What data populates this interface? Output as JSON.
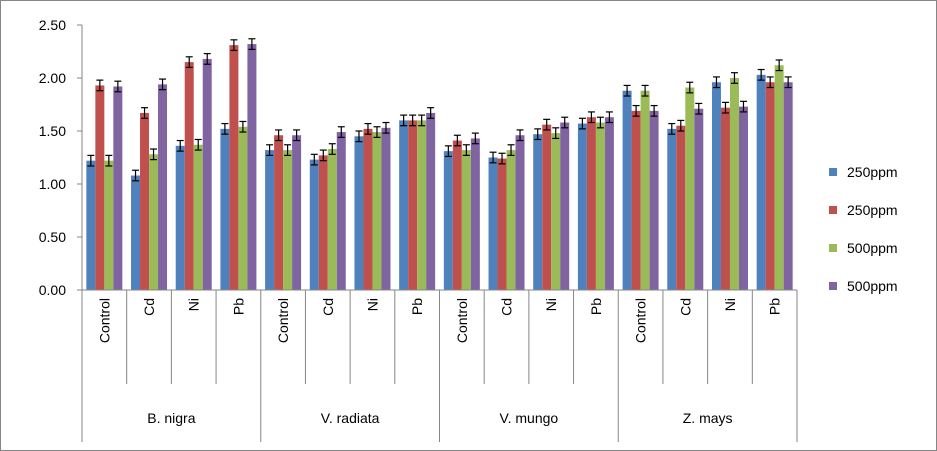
{
  "chart_data": {
    "type": "bar",
    "title": "",
    "xlabel": "",
    "ylabel": "",
    "ylim": [
      0,
      2.5
    ],
    "yticks": [
      "0.00",
      "0.50",
      "1.00",
      "1.50",
      "2.00",
      "2.50"
    ],
    "grid": false,
    "legend_position": "right",
    "groups": [
      {
        "name": "B. nigra",
        "categories": [
          "Control",
          "Cd",
          "Ni",
          "Pb"
        ]
      },
      {
        "name": "V. radiata",
        "categories": [
          "Control",
          "Cd",
          "Ni",
          "Pb"
        ]
      },
      {
        "name": "V. mungo",
        "categories": [
          "Control",
          "Cd",
          "Ni",
          "Pb"
        ]
      },
      {
        "name": "Z. mays",
        "categories": [
          "Control",
          "Cd",
          "Ni",
          "Pb"
        ]
      }
    ],
    "series": [
      {
        "name": "250ppm",
        "color": "#4F81BD",
        "values": [
          1.22,
          1.08,
          1.36,
          1.52,
          1.32,
          1.23,
          1.45,
          1.6,
          1.31,
          1.25,
          1.47,
          1.57,
          1.88,
          1.52,
          1.96,
          2.03
        ],
        "errors": [
          0.05,
          0.05,
          0.05,
          0.05,
          0.05,
          0.05,
          0.05,
          0.05,
          0.05,
          0.05,
          0.05,
          0.05,
          0.05,
          0.05,
          0.05,
          0.05
        ]
      },
      {
        "name": "250ppm",
        "color": "#C0504D",
        "values": [
          1.93,
          1.67,
          2.15,
          2.31,
          1.46,
          1.27,
          1.52,
          1.6,
          1.41,
          1.24,
          1.56,
          1.63,
          1.69,
          1.55,
          1.72,
          1.96
        ],
        "errors": [
          0.05,
          0.05,
          0.05,
          0.05,
          0.05,
          0.05,
          0.05,
          0.05,
          0.05,
          0.05,
          0.05,
          0.05,
          0.05,
          0.05,
          0.05,
          0.05
        ]
      },
      {
        "name": "500ppm",
        "color": "#9BBB59",
        "values": [
          1.22,
          1.28,
          1.37,
          1.54,
          1.32,
          1.33,
          1.49,
          1.6,
          1.32,
          1.32,
          1.48,
          1.58,
          1.88,
          1.91,
          2.0,
          2.12
        ],
        "errors": [
          0.05,
          0.05,
          0.05,
          0.05,
          0.05,
          0.05,
          0.05,
          0.05,
          0.05,
          0.05,
          0.05,
          0.05,
          0.05,
          0.05,
          0.05,
          0.05
        ]
      },
      {
        "name": "500ppm",
        "color": "#8064A2",
        "values": [
          1.92,
          1.94,
          2.18,
          2.32,
          1.46,
          1.49,
          1.53,
          1.67,
          1.43,
          1.46,
          1.58,
          1.63,
          1.69,
          1.71,
          1.73,
          1.96
        ],
        "errors": [
          0.05,
          0.05,
          0.05,
          0.05,
          0.05,
          0.05,
          0.05,
          0.05,
          0.05,
          0.05,
          0.05,
          0.05,
          0.05,
          0.05,
          0.05,
          0.05
        ]
      }
    ]
  }
}
